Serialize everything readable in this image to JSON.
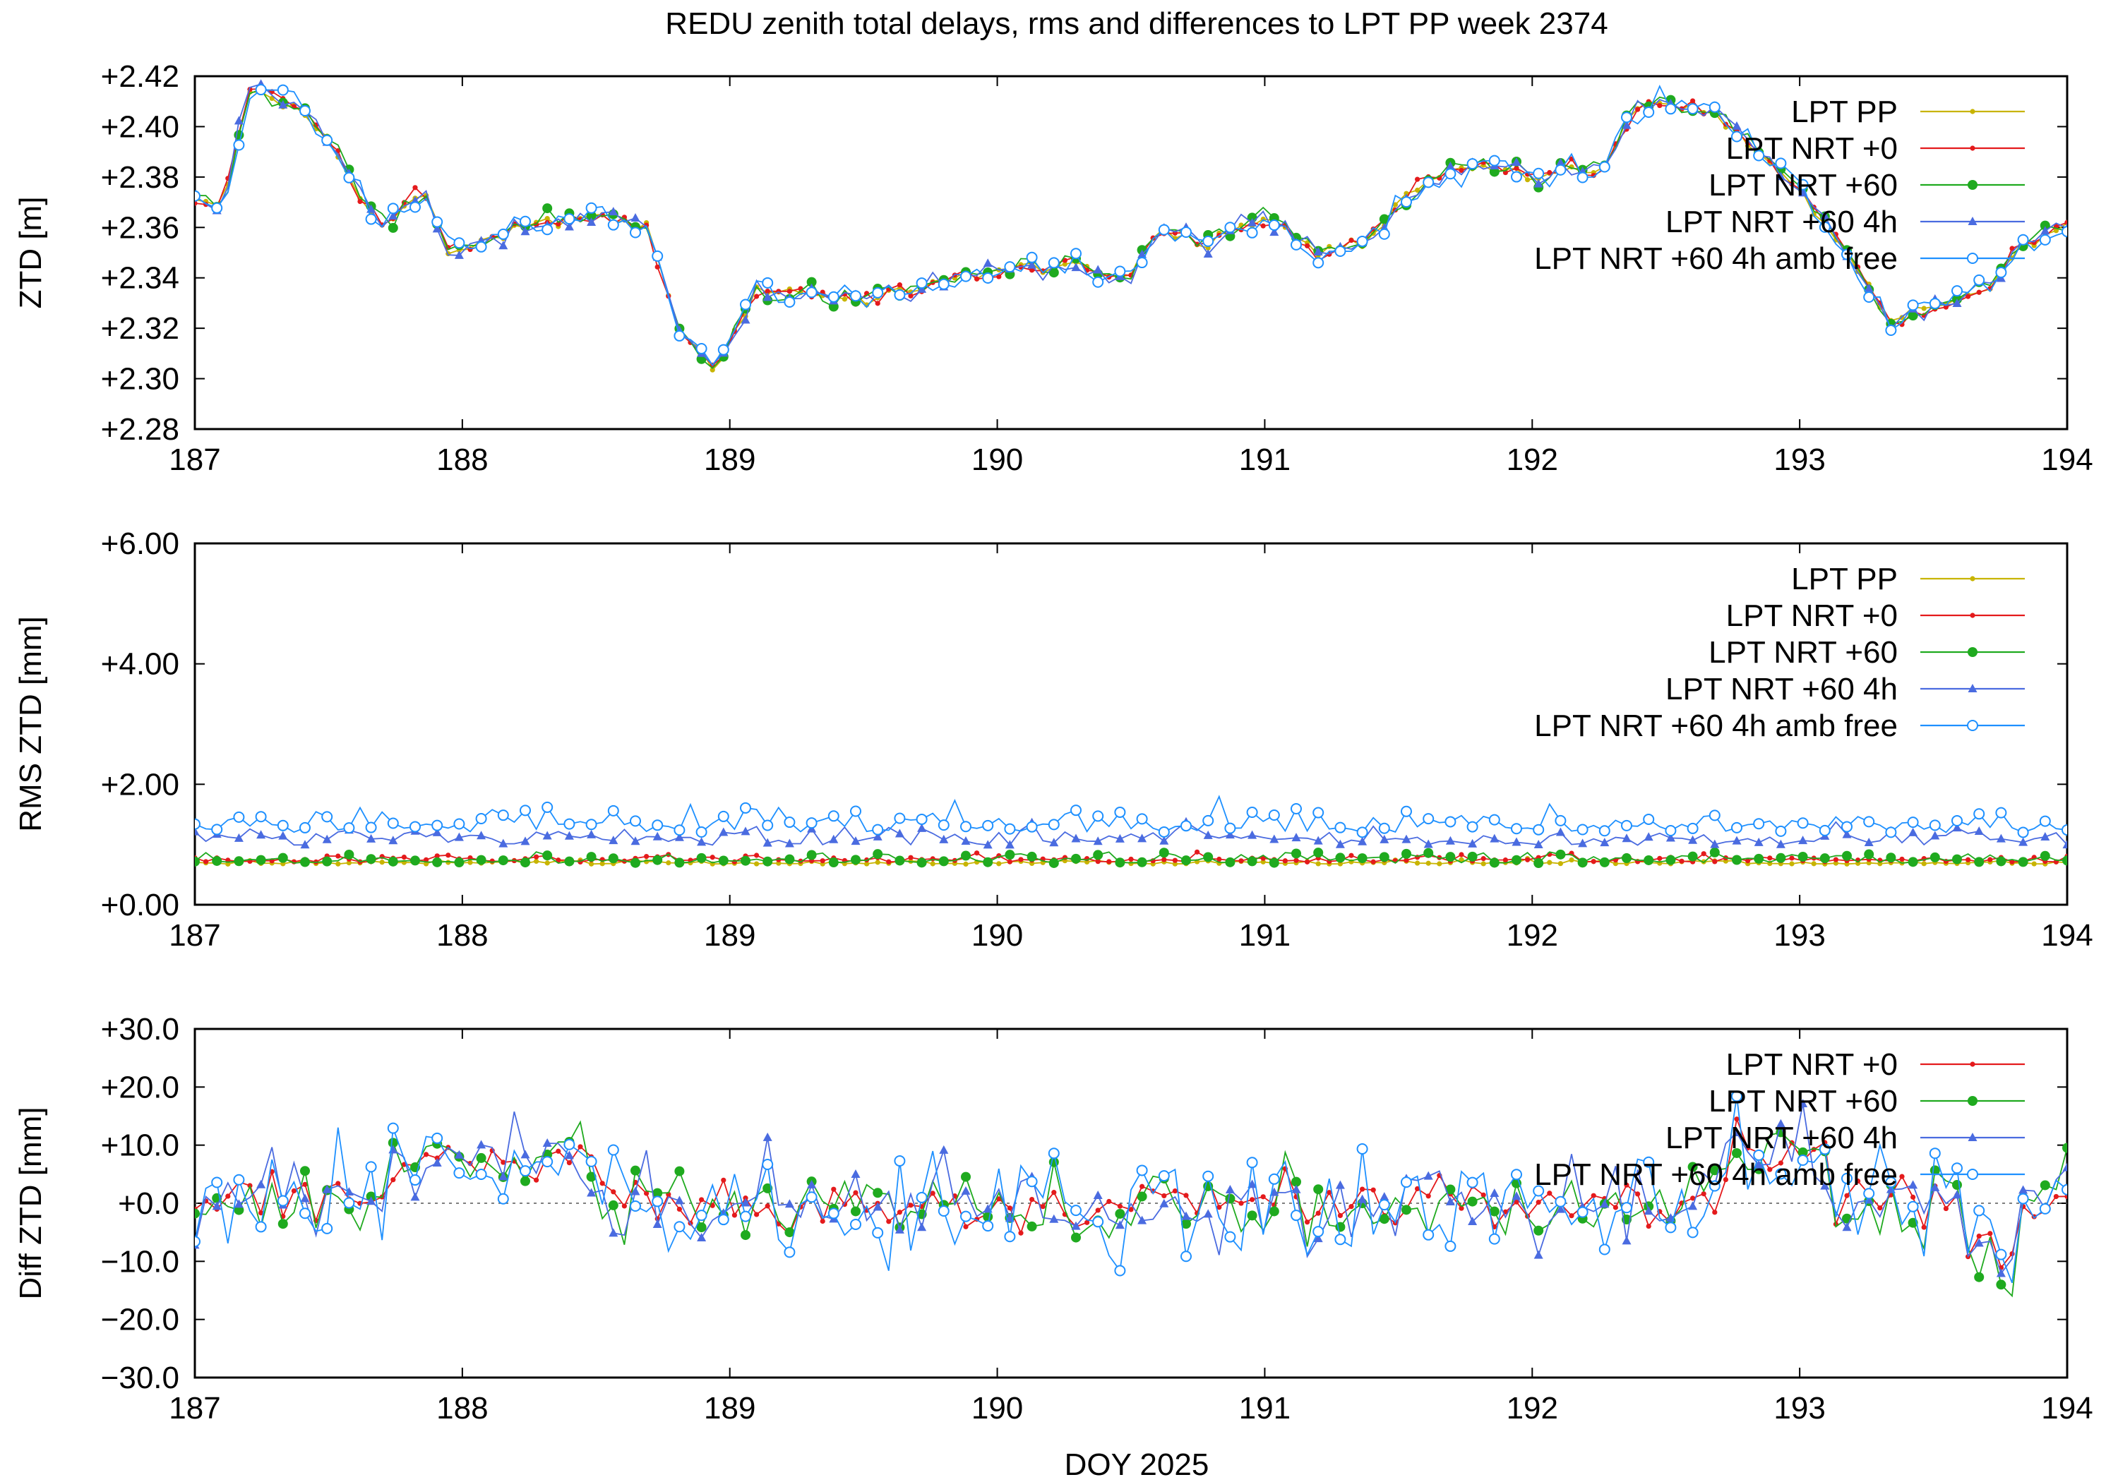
{
  "title": "REDU zenith total delays, rms and differences to LPT PP week 2374",
  "xlabel": "DOY 2025",
  "colors": {
    "LPT PP": "#c8b400",
    "LPT NRT +0": "#e41a1c",
    "LPT NRT +60": "#1faa1f",
    "LPT NRT +60 4h": "#4a6be0",
    "LPT NRT +60 4h amb free": "#1e90ff"
  },
  "chart_data": [
    {
      "type": "line",
      "ylabel": "ZTD [m]",
      "xlim": [
        187,
        194
      ],
      "ylim": [
        2.28,
        2.42
      ],
      "x_ticks": [
        "187",
        "188",
        "189",
        "190",
        "191",
        "192",
        "193",
        "194"
      ],
      "y_ticks": [
        "+2.28",
        "+2.30",
        "+2.32",
        "+2.34",
        "+2.36",
        "+2.38",
        "+2.40",
        "+2.42"
      ],
      "legend": [
        "LPT PP",
        "LPT NRT +0",
        "LPT NRT +60",
        "LPT NRT +60 4h",
        "LPT NRT +60 4h amb free"
      ],
      "legend_position": "top-right",
      "grid": false,
      "anchors_x": [
        187.0,
        187.1,
        187.2,
        187.35,
        187.5,
        187.7,
        187.85,
        187.95,
        188.2,
        188.5,
        188.7,
        188.8,
        188.95,
        189.1,
        189.5,
        189.8,
        190.2,
        190.5,
        190.6,
        190.8,
        191.0,
        191.2,
        191.4,
        191.6,
        191.8,
        192.0,
        192.15,
        192.25,
        192.4,
        192.7,
        193.0,
        193.2,
        193.35,
        193.5,
        193.7,
        193.85,
        194.0
      ],
      "anchors_y": [
        2.37,
        2.365,
        2.415,
        2.41,
        2.395,
        2.36,
        2.375,
        2.35,
        2.36,
        2.365,
        2.36,
        2.32,
        2.305,
        2.335,
        2.33,
        2.34,
        2.345,
        2.34,
        2.36,
        2.355,
        2.365,
        2.35,
        2.355,
        2.38,
        2.385,
        2.38,
        2.385,
        2.38,
        2.41,
        2.405,
        2.375,
        2.345,
        2.32,
        2.33,
        2.335,
        2.355,
        2.36
      ],
      "series_offsets": [
        0,
        0.0005,
        0.001,
        0.0015,
        -0.001
      ],
      "series_noise": [
        0.002,
        0.003,
        0.004,
        0.004,
        0.005
      ]
    },
    {
      "type": "line",
      "ylabel": "RMS ZTD [mm]",
      "xlim": [
        187,
        194
      ],
      "ylim": [
        0,
        6
      ],
      "x_ticks": [
        "187",
        "188",
        "189",
        "190",
        "191",
        "192",
        "193",
        "194"
      ],
      "y_ticks": [
        "+0.00",
        "+2.00",
        "+4.00",
        "+6.00"
      ],
      "legend": [
        "LPT PP",
        "LPT NRT +0",
        "LPT NRT +60",
        "LPT NRT +60 4h",
        "LPT NRT +60 4h amb free"
      ],
      "legend_position": "top-right",
      "grid": false,
      "series_mean": [
        0.7,
        0.75,
        0.75,
        1.1,
        1.35
      ],
      "series_noise": [
        0.05,
        0.08,
        0.12,
        0.22,
        0.3
      ]
    },
    {
      "type": "line",
      "ylabel": "Diff ZTD [mm]",
      "xlim": [
        187,
        194
      ],
      "ylim": [
        -30,
        30
      ],
      "x_ticks": [
        "187",
        "188",
        "189",
        "190",
        "191",
        "192",
        "193",
        "194"
      ],
      "y_ticks": [
        "−30.0",
        "−20.0",
        "−10.0",
        "+0.0",
        "+10.0",
        "+20.0",
        "+30.0"
      ],
      "legend": [
        "LPT NRT +0",
        "LPT NRT +60",
        "LPT NRT +60 4h",
        "LPT NRT +60 4h amb free"
      ],
      "legend_position": "top-right",
      "grid": false,
      "zero_line": true,
      "series_noise": [
        4,
        6,
        7,
        9
      ]
    }
  ]
}
